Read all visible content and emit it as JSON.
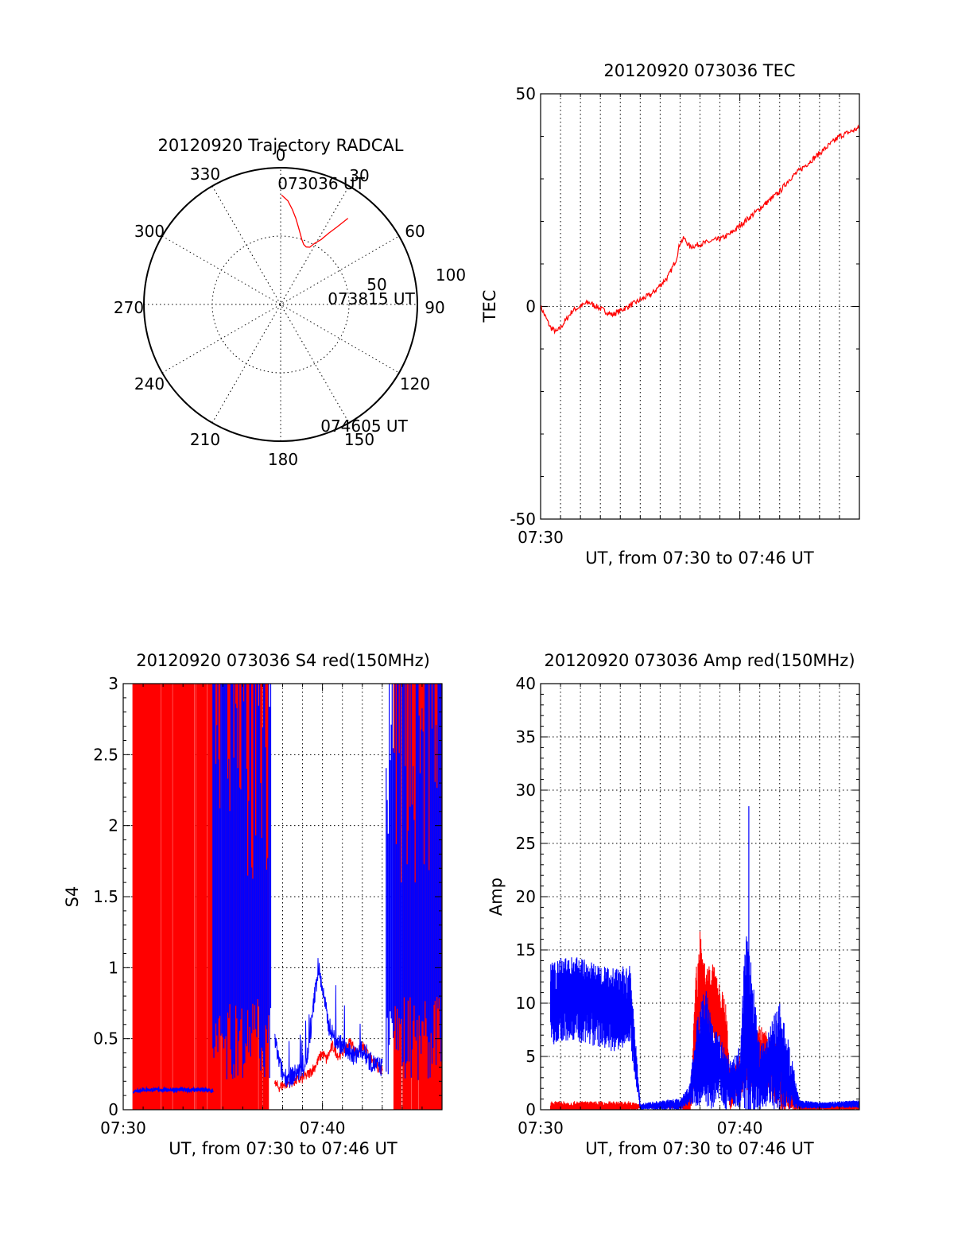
{
  "colors": {
    "red": "#ff0000",
    "blue": "#0000ff",
    "black": "#000000"
  },
  "polar": {
    "title": "20120920 Trajectory RADCAL",
    "azimuth_labels": [
      "0",
      "30",
      "60",
      "90",
      "120",
      "150",
      "180",
      "210",
      "240",
      "270",
      "300",
      "330"
    ],
    "radial_labels": [
      "50",
      "100"
    ],
    "start_time": "073036 UT",
    "mid_time": "073815 UT",
    "end_time": "074605 UT"
  },
  "chart_data": [
    {
      "id": "trajectory",
      "type": "scatter",
      "title": "20120920 Trajectory RADCAL",
      "projection": "polar",
      "rlim": [
        0,
        100
      ],
      "grid": true,
      "series": [
        {
          "color": "#ff0000",
          "theta": [
            0.5,
            4,
            7,
            10,
            13,
            16,
            18,
            21,
            24,
            27,
            29,
            32,
            34,
            36,
            38
          ],
          "r": [
            80,
            76,
            70,
            64,
            58,
            53,
            50,
            47,
            46,
            47,
            51,
            56,
            63,
            70,
            80
          ],
          "labels": [
            "073036 UT",
            "",
            "",
            "",
            "",
            "",
            "",
            "073815 UT",
            "",
            "",
            "",
            "",
            "",
            "",
            "074605 UT"
          ]
        }
      ]
    },
    {
      "id": "tec",
      "type": "line",
      "title": "20120920 073036 TEC",
      "xlabel": "UT, from 07:30 to 07:46 UT",
      "ylabel": "TEC",
      "xlim": [
        0,
        16
      ],
      "ylim": [
        -50,
        50
      ],
      "x_ticks": [
        {
          "x": 0,
          "label": "07:30"
        }
      ],
      "y_ticks": [
        -50,
        0,
        50
      ],
      "y_tick_labels": [
        "-50",
        "0",
        "50"
      ],
      "grid": true,
      "series": [
        {
          "color": "#ff0000",
          "x": [
            0.0,
            0.3,
            0.5,
            0.8,
            1.0,
            1.3,
            1.6,
            2.0,
            2.4,
            2.8,
            3.2,
            3.6,
            4.0,
            4.4,
            4.8,
            5.2,
            5.6,
            6.0,
            6.4,
            6.8,
            7.0,
            7.2,
            7.5,
            7.9,
            8.3,
            8.7,
            9.1,
            9.5,
            10.0,
            10.5,
            11.0,
            11.5,
            12.0,
            12.5,
            13.0,
            13.5,
            14.0,
            14.5,
            15.0,
            15.5,
            16.0
          ],
          "y": [
            0,
            -3,
            -5,
            -6,
            -5,
            -3,
            -1,
            0,
            1,
            0,
            -1,
            -2,
            -1,
            0,
            1,
            2,
            3,
            5,
            7,
            11,
            15,
            16,
            14,
            14.5,
            15,
            15.5,
            16,
            17,
            19,
            21,
            23,
            25,
            27,
            30,
            32,
            34,
            36,
            38,
            40,
            41,
            42
          ]
        }
      ]
    },
    {
      "id": "s4",
      "type": "line",
      "title": "20120920 073036 S4 red(150MHz)",
      "xlabel": "UT, from 07:30 to 07:46 UT",
      "ylabel": "S4",
      "xlim": [
        0,
        16
      ],
      "ylim": [
        0,
        3
      ],
      "x_ticks": [
        {
          "x": 0,
          "label": "07:30"
        },
        {
          "x": 10,
          "label": "07:40"
        }
      ],
      "y_ticks": [
        0,
        0.5,
        1,
        1.5,
        2,
        2.5,
        3
      ],
      "y_tick_labels": [
        "0",
        "0.5",
        "1",
        "1.5",
        "2",
        "2.5",
        "3"
      ],
      "grid": true,
      "series": [
        {
          "color": "#ff0000",
          "saturated_band": [
            0.5,
            7.3
          ],
          "x": [
            7.6,
            7.8,
            8.0,
            8.3,
            8.6,
            9.0,
            9.3,
            9.6,
            10.0,
            10.2,
            10.5,
            10.8,
            11.1,
            11.4,
            11.7,
            12.0,
            12.3,
            12.6,
            13.0
          ],
          "y": [
            0.18,
            0.16,
            0.17,
            0.19,
            0.2,
            0.22,
            0.25,
            0.3,
            0.4,
            0.35,
            0.45,
            0.38,
            0.42,
            0.48,
            0.4,
            0.45,
            0.38,
            0.32,
            0.28
          ]
        },
        {
          "color": "#ff0000",
          "saturated_band": [
            13.6,
            16.0
          ],
          "x": [],
          "y": []
        },
        {
          "color": "#0000ff",
          "x": [
            0.5,
            1.0,
            2.0,
            3.0,
            4.0,
            4.5,
            7.6,
            7.8,
            8.0,
            8.3,
            8.6,
            9.0,
            9.3,
            9.6,
            9.8,
            10.0,
            10.3,
            10.6,
            11.0,
            11.3,
            11.6,
            12.0,
            12.3,
            12.6,
            13.0
          ],
          "y": [
            0.13,
            0.14,
            0.14,
            0.14,
            0.14,
            0.13,
            0.5,
            0.35,
            0.25,
            0.22,
            0.25,
            0.28,
            0.4,
            0.8,
            1.0,
            0.85,
            0.6,
            0.5,
            0.45,
            0.4,
            0.38,
            0.42,
            0.35,
            0.32,
            0.3
          ],
          "saturated_bands": [
            [
              4.5,
              7.4
            ],
            [
              13.2,
              16.0
            ]
          ]
        }
      ]
    },
    {
      "id": "amp",
      "type": "line",
      "title": "20120920 073036 Amp red(150MHz)",
      "xlabel": "UT, from 07:30 to 07:46 UT",
      "ylabel": "Amp",
      "xlim": [
        0,
        16
      ],
      "ylim": [
        0,
        40
      ],
      "x_ticks": [
        {
          "x": 0,
          "label": "07:30"
        },
        {
          "x": 10,
          "label": "07:40"
        }
      ],
      "y_ticks": [
        0,
        5,
        10,
        15,
        20,
        25,
        30,
        35,
        40
      ],
      "y_tick_labels": [
        "0",
        "5",
        "10",
        "15",
        "20",
        "25",
        "30",
        "35",
        "40"
      ],
      "grid": true,
      "series": [
        {
          "color": "#ff0000",
          "x": [
            0.5,
            4.5,
            5.0,
            7.0,
            7.5,
            7.8,
            8.0,
            8.3,
            8.6,
            9.0,
            9.3,
            9.5,
            10.0,
            10.5,
            11.0,
            11.5,
            12.0,
            12.5,
            13.0,
            16.0
          ],
          "y": [
            0.2,
            0.2,
            0.3,
            0.3,
            0.5,
            8,
            12,
            9,
            10,
            8,
            7,
            2,
            3,
            4,
            5,
            4,
            3,
            1,
            0.2,
            0.2
          ],
          "y_spread": [
            0.6,
            0.6,
            0.2,
            0.2,
            1,
            5,
            6,
            4,
            4,
            4,
            3,
            2,
            2,
            2,
            3,
            3,
            3,
            1,
            0.3,
            0.3
          ]
        },
        {
          "color": "#0000ff",
          "x": [
            0.5,
            1.5,
            2.5,
            3.5,
            4.5,
            5.0,
            7.0,
            7.5,
            7.8,
            8.0,
            8.3,
            8.6,
            9.0,
            9.3,
            9.6,
            10.0,
            10.3,
            10.6,
            11.0,
            11.5,
            12.0,
            12.5,
            13.0,
            14.0,
            15.0,
            16.0
          ],
          "y": [
            10,
            10.5,
            10,
            9.5,
            9.5,
            0.3,
            0.5,
            1.5,
            4,
            5,
            6,
            4,
            4,
            3,
            2.5,
            3,
            8,
            6,
            3,
            4,
            5,
            3,
            0.5,
            0.4,
            0.5,
            0.5
          ],
          "y_spread": [
            4,
            4,
            4,
            4,
            4,
            0.3,
            0.6,
            1,
            4,
            5,
            6,
            4,
            3,
            3,
            2,
            3,
            9,
            8,
            3,
            4,
            5,
            3,
            0.4,
            0.3,
            0.3,
            0.4
          ]
        }
      ]
    }
  ]
}
